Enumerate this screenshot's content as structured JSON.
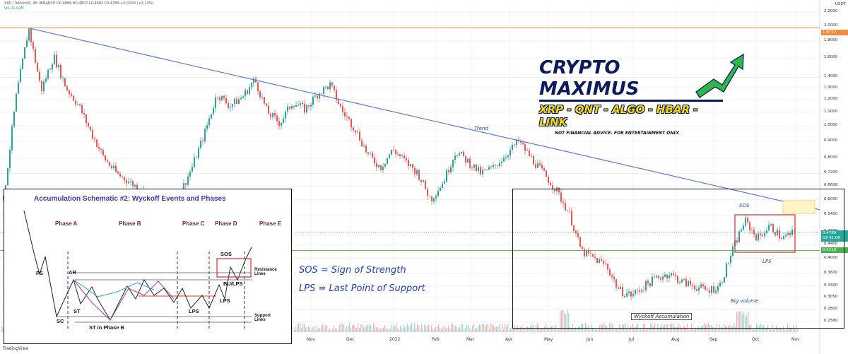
{
  "header": {
    "line1": "XRP / TetherUS, 4h, BINANCE  O0.4689  H0.4807  L0.4682  C0.4789  +0.0100 (+2.13%)",
    "line2": "Vol  21.02M"
  },
  "price_labels": {
    "top": {
      "value": "1.9722",
      "color": "#f7893a"
    },
    "current": {
      "value": "0.4789",
      "sub": "03:42:06",
      "color": "#26a69a"
    },
    "support": {
      "value": "0.4219",
      "color": "#4caf50"
    }
  },
  "axis_unit": "USDT",
  "logo": {
    "title": "CRYPTO MAXIMUS",
    "subtitle": "XRP - QNT - ALGO - HBAR - LINK",
    "disclaimer": "NOT FINANCIAL ADVICE. FOR ENTERTAINMENT ONLY."
  },
  "notes": {
    "sos": "SOS = Sign of Strength",
    "lps": "LPS =  Last Point of Support"
  },
  "annotations": {
    "trend": "Trend",
    "sos": "SOS",
    "lps": "LPS",
    "big_volume": "Big volume",
    "wyckoff": "Wyckoff Accumulation"
  },
  "inset": {
    "title": "Accumulation Schematic #2: Wyckoff Events and Phases",
    "phases": [
      "Phase A",
      "Phase B",
      "Phase C",
      "Phase D",
      "Phase E"
    ],
    "events": {
      "ps": "PS",
      "ar": "AR",
      "st": "ST",
      "sc": "SC",
      "st_b": "ST in Phase B",
      "lps": "LPS",
      "lps2": "LPS",
      "bu_lps": "BU/LPS",
      "sos": "SOS",
      "resistance": "Resistance Lines",
      "support": "Support Lines"
    }
  },
  "footer": {
    "brand": "TradingView"
  },
  "colors": {
    "up": "#26a69a",
    "down": "#ef5350",
    "trend": "#5b7bd5",
    "accent_red": "#e53935"
  },
  "chart_data": {
    "type": "candlestick",
    "title": "XRP / TetherUS, 4h, BINANCE",
    "ylabel": "USDT",
    "y_scale": "log",
    "ylim": [
      0.24,
      2.3
    ],
    "y_ticks": [
      2.2,
      2.0,
      1.8,
      1.6,
      1.4,
      1.3,
      1.2,
      1.1,
      1.0,
      0.9,
      0.8,
      0.72,
      0.66,
      0.6,
      0.54,
      0.48,
      0.44,
      0.4,
      0.36,
      0.33,
      0.305,
      0.28,
      0.258
    ],
    "x_ticks": [
      "Nov",
      "Dec",
      "2022",
      "Feb",
      "Mar",
      "Apr",
      "May",
      "Jun",
      "Jul",
      "Aug",
      "Sep",
      "Oct",
      "Nov"
    ],
    "price_path": [
      [
        0,
        0.6
      ],
      [
        1,
        1.22
      ],
      [
        2,
        1.97
      ],
      [
        3,
        1.28
      ],
      [
        4,
        1.62
      ],
      [
        5,
        1.3
      ],
      [
        6,
        1.15
      ],
      [
        7,
        0.95
      ],
      [
        8,
        0.8
      ],
      [
        9,
        0.72
      ],
      [
        10,
        0.68
      ],
      [
        11,
        0.64
      ],
      [
        12,
        0.6
      ],
      [
        13,
        0.55
      ],
      [
        14,
        0.62
      ],
      [
        15,
        0.75
      ],
      [
        16,
        0.95
      ],
      [
        17,
        1.25
      ],
      [
        18,
        1.15
      ],
      [
        19,
        1.22
      ],
      [
        20,
        1.38
      ],
      [
        21,
        1.1
      ],
      [
        22,
        1.02
      ],
      [
        23,
        1.18
      ],
      [
        24,
        1.12
      ],
      [
        25,
        1.25
      ],
      [
        26,
        1.33
      ],
      [
        27,
        1.1
      ],
      [
        28,
        0.98
      ],
      [
        29,
        0.82
      ],
      [
        30,
        0.75
      ],
      [
        31,
        0.85
      ],
      [
        32,
        0.78
      ],
      [
        33,
        0.72
      ],
      [
        34,
        0.6
      ],
      [
        35,
        0.68
      ],
      [
        36,
        0.84
      ],
      [
        37,
        0.78
      ],
      [
        38,
        0.72
      ],
      [
        39,
        0.75
      ],
      [
        40,
        0.82
      ],
      [
        41,
        0.9
      ],
      [
        42,
        0.8
      ],
      [
        43,
        0.72
      ],
      [
        44,
        0.64
      ],
      [
        45,
        0.55
      ],
      [
        46,
        0.42
      ],
      [
        47,
        0.4
      ],
      [
        48,
        0.38
      ],
      [
        49,
        0.32
      ],
      [
        50,
        0.31
      ],
      [
        51,
        0.33
      ],
      [
        52,
        0.35
      ],
      [
        53,
        0.36
      ],
      [
        54,
        0.34
      ],
      [
        55,
        0.33
      ],
      [
        56,
        0.32
      ],
      [
        57,
        0.33
      ],
      [
        58,
        0.42
      ],
      [
        59,
        0.52
      ],
      [
        60,
        0.46
      ],
      [
        61,
        0.5
      ],
      [
        62,
        0.46
      ],
      [
        63,
        0.479
      ]
    ],
    "horizontal_lines": [
      {
        "label": "1.9722",
        "value": 1.9722,
        "color": "#f7893a"
      },
      {
        "label": "0.4219",
        "value": 0.4219,
        "color": "#4caf50"
      }
    ],
    "trendline": {
      "label": "Trend",
      "from": [
        2,
        1.97
      ],
      "to": [
        63,
        0.56
      ]
    },
    "grid": true
  }
}
